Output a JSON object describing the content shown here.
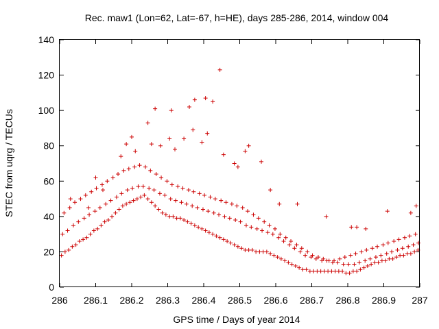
{
  "chart_data": {
    "type": "scatter",
    "title": "Rec. maw1 (Lon=62, Lat=-67, h=HE), days 285-286, 2014, window 004",
    "xlabel": "GPS time / Days of year 2014",
    "ylabel": "STEC from uqrg / TECUs",
    "xlim": [
      286,
      287
    ],
    "ylim": [
      0,
      140
    ],
    "x_ticks": [
      "286",
      "286.1",
      "286.2",
      "286.3",
      "286.4",
      "286.5",
      "286.6",
      "286.7",
      "286.8",
      "286.9",
      "287"
    ],
    "y_ticks": [
      "0",
      "20",
      "40",
      "60",
      "80",
      "100",
      "120",
      "140"
    ],
    "grid": false,
    "legend": "none",
    "marker": "plus",
    "color": "#cc0000",
    "series": [
      {
        "x": [
          286.005,
          286.015,
          286.025,
          286.035,
          286.045,
          286.055,
          286.065,
          286.075,
          286.085,
          286.095,
          286.105,
          286.115,
          286.125,
          286.135,
          286.145,
          286.155,
          286.165,
          286.175,
          286.185,
          286.195,
          286.205,
          286.215,
          286.225,
          286.235,
          286.245,
          286.255,
          286.265,
          286.275,
          286.285,
          286.295,
          286.305,
          286.315,
          286.325,
          286.335,
          286.345,
          286.355,
          286.365,
          286.375,
          286.385,
          286.395,
          286.405,
          286.415,
          286.425,
          286.435,
          286.445,
          286.455,
          286.465,
          286.475,
          286.485,
          286.495,
          286.505,
          286.515,
          286.525,
          286.535,
          286.545,
          286.555,
          286.565,
          286.575,
          286.585,
          286.595,
          286.605,
          286.615,
          286.625,
          286.635,
          286.645,
          286.655,
          286.665,
          286.675,
          286.685,
          286.695,
          286.705,
          286.715,
          286.725,
          286.735,
          286.745,
          286.755,
          286.765,
          286.775,
          286.785,
          286.795,
          286.805,
          286.815,
          286.825,
          286.835,
          286.845,
          286.855,
          286.865,
          286.875,
          286.885,
          286.895,
          286.905,
          286.915,
          286.925,
          286.935,
          286.945,
          286.955,
          286.965,
          286.975,
          286.985,
          286.995
        ],
        "y": [
          18,
          20,
          21,
          23,
          24,
          26,
          27,
          28,
          30,
          32,
          33,
          35,
          37,
          38,
          40,
          42,
          44,
          46,
          47,
          48,
          49,
          50,
          51,
          52,
          50,
          48,
          46,
          44,
          42,
          41,
          40,
          40,
          39,
          39,
          38,
          37,
          36,
          35,
          34,
          33,
          32,
          31,
          30,
          29,
          28,
          27,
          26,
          25,
          24,
          23,
          22,
          21,
          21,
          21,
          20,
          20,
          20,
          20,
          19,
          18,
          17,
          16,
          15,
          14,
          13,
          12,
          11,
          10,
          10,
          9,
          9,
          9,
          9,
          9,
          9,
          9,
          9,
          9,
          9,
          8,
          8,
          9,
          9,
          10,
          11,
          12,
          13,
          14,
          14,
          15,
          15,
          16,
          16,
          17,
          18,
          18,
          19,
          19,
          20,
          21
        ]
      },
      {
        "x": [
          286.008,
          286.022,
          286.038,
          286.052,
          286.068,
          286.082,
          286.098,
          286.112,
          286.128,
          286.142,
          286.158,
          286.172,
          286.188,
          286.202,
          286.218,
          286.232,
          286.248,
          286.262,
          286.278,
          286.292,
          286.308,
          286.322,
          286.338,
          286.352,
          286.368,
          286.382,
          286.398,
          286.412,
          286.428,
          286.442,
          286.458,
          286.472,
          286.488,
          286.502,
          286.518,
          286.532,
          286.548,
          286.562,
          286.578,
          286.592,
          286.608,
          286.622,
          286.638,
          286.652,
          286.668,
          286.682,
          286.698,
          286.712,
          286.728,
          286.742,
          286.758,
          286.772,
          286.788,
          286.802,
          286.818,
          286.832,
          286.848,
          286.862,
          286.878,
          286.892,
          286.908,
          286.922,
          286.938,
          286.952,
          286.968,
          286.982,
          286.996
        ],
        "y": [
          30,
          32,
          35,
          37,
          39,
          41,
          43,
          45,
          47,
          49,
          51,
          53,
          55,
          56,
          57,
          57,
          56,
          55,
          53,
          52,
          50,
          49,
          48,
          47,
          46,
          45,
          44,
          43,
          42,
          41,
          40,
          39,
          38,
          37,
          35,
          34,
          33,
          32,
          31,
          30,
          28,
          26,
          24,
          22,
          20,
          18,
          17,
          16,
          15,
          15,
          14,
          14,
          13,
          13,
          13,
          14,
          15,
          16,
          17,
          18,
          19,
          20,
          21,
          22,
          23,
          24,
          25
        ]
      },
      {
        "x": [
          286.012,
          286.028,
          286.042,
          286.058,
          286.072,
          286.088,
          286.102,
          286.118,
          286.132,
          286.148,
          286.162,
          286.178,
          286.192,
          286.208,
          286.222,
          286.238,
          286.252,
          286.268,
          286.282,
          286.298,
          286.312,
          286.328,
          286.342,
          286.358,
          286.372,
          286.388,
          286.402,
          286.418,
          286.432,
          286.448,
          286.462,
          286.478,
          286.492,
          286.508,
          286.522,
          286.538,
          286.552,
          286.568,
          286.582,
          286.598,
          286.612,
          286.628,
          286.642,
          286.658,
          286.672,
          286.688,
          286.702,
          286.718,
          286.732,
          286.748,
          286.762,
          286.778,
          286.792,
          286.808,
          286.822,
          286.838,
          286.852,
          286.868,
          286.882,
          286.898,
          286.912,
          286.928,
          286.942,
          286.958,
          286.972,
          286.988
        ],
        "y": [
          42,
          45,
          48,
          50,
          52,
          54,
          56,
          58,
          60,
          62,
          64,
          66,
          67,
          68,
          69,
          68,
          66,
          64,
          62,
          60,
          58,
          57,
          56,
          55,
          54,
          53,
          52,
          51,
          50,
          49,
          48,
          47,
          46,
          45,
          43,
          41,
          39,
          37,
          35,
          33,
          30,
          28,
          26,
          24,
          22,
          20,
          18,
          17,
          16,
          15,
          15,
          16,
          17,
          18,
          19,
          20,
          21,
          22,
          23,
          24,
          25,
          26,
          27,
          28,
          29,
          30
        ]
      },
      {
        "x": [
          286.03,
          286.08,
          286.1,
          286.12,
          286.17,
          286.185,
          286.2,
          286.21,
          286.245,
          286.255,
          286.265,
          286.28,
          286.305,
          286.31,
          286.32,
          286.345,
          286.36,
          286.37,
          286.375,
          286.395,
          286.405,
          286.41,
          286.425,
          286.445,
          286.455,
          286.485,
          286.495,
          286.515,
          286.525,
          286.56,
          286.585,
          286.61,
          286.66,
          286.74,
          286.81,
          286.825,
          286.85,
          286.91,
          286.975,
          286.99
        ],
        "y": [
          50,
          45,
          62,
          55,
          74,
          81,
          85,
          77,
          93,
          81,
          101,
          80,
          84,
          100,
          78,
          84,
          102,
          89,
          106,
          82,
          107,
          87,
          105,
          123,
          75,
          70,
          68,
          77,
          80,
          71,
          55,
          47,
          47,
          40,
          34,
          34,
          33,
          43,
          42,
          46
        ]
      }
    ]
  }
}
